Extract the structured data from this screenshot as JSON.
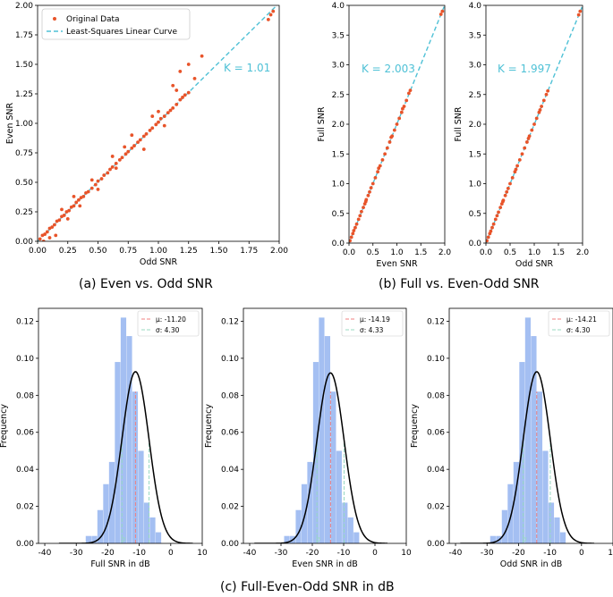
{
  "captions": {
    "a": "(a) Even vs. Odd SNR",
    "b": "(b) Full vs. Even-Odd SNR",
    "c": "(c) Full-Even-Odd SNR in dB"
  },
  "colors": {
    "points": "#e8542a",
    "fit": "#4fc1d6",
    "hist": "#a4bff2",
    "gauss": "#000000",
    "mu_line": "#f08080",
    "sigma_line": "#98d9c2"
  },
  "chart_data": [
    {
      "id": "a",
      "type": "scatter",
      "xlabel": "Odd SNR",
      "ylabel": "Even SNR",
      "xlim": [
        0,
        2.0
      ],
      "ylim": [
        0,
        2.0
      ],
      "xticks": [
        0.0,
        0.25,
        0.5,
        0.75,
        1.0,
        1.25,
        1.5,
        1.75,
        2.0
      ],
      "yticks": [
        0.0,
        0.25,
        0.5,
        0.75,
        1.0,
        1.25,
        1.5,
        1.75,
        2.0
      ],
      "tick_decimals": 2,
      "legend": {
        "position": "upper-left",
        "entries": [
          "Original Data",
          "Least-Squares Linear Curve"
        ]
      },
      "fit": {
        "slope": 1.01,
        "annotation": "K = 1.01"
      },
      "series": [
        {
          "name": "Original Data",
          "type": "scatter",
          "points": [
            [
              0.02,
              0.02
            ],
            [
              0.04,
              0.05
            ],
            [
              0.06,
              0.06
            ],
            [
              0.08,
              0.08
            ],
            [
              0.1,
              0.11
            ],
            [
              0.12,
              0.12
            ],
            [
              0.14,
              0.14
            ],
            [
              0.16,
              0.17
            ],
            [
              0.18,
              0.18
            ],
            [
              0.2,
              0.21
            ],
            [
              0.22,
              0.22
            ],
            [
              0.24,
              0.25
            ],
            [
              0.26,
              0.26
            ],
            [
              0.28,
              0.29
            ],
            [
              0.3,
              0.3
            ],
            [
              0.32,
              0.33
            ],
            [
              0.34,
              0.35
            ],
            [
              0.36,
              0.37
            ],
            [
              0.38,
              0.38
            ],
            [
              0.4,
              0.41
            ],
            [
              0.42,
              0.42
            ],
            [
              0.45,
              0.45
            ],
            [
              0.48,
              0.48
            ],
            [
              0.5,
              0.51
            ],
            [
              0.53,
              0.53
            ],
            [
              0.55,
              0.56
            ],
            [
              0.58,
              0.58
            ],
            [
              0.6,
              0.61
            ],
            [
              0.62,
              0.63
            ],
            [
              0.65,
              0.66
            ],
            [
              0.68,
              0.69
            ],
            [
              0.7,
              0.71
            ],
            [
              0.73,
              0.74
            ],
            [
              0.75,
              0.76
            ],
            [
              0.78,
              0.79
            ],
            [
              0.8,
              0.81
            ],
            [
              0.83,
              0.84
            ],
            [
              0.85,
              0.86
            ],
            [
              0.88,
              0.89
            ],
            [
              0.9,
              0.91
            ],
            [
              0.93,
              0.94
            ],
            [
              0.95,
              0.96
            ],
            [
              0.98,
              0.99
            ],
            [
              1.0,
              1.01
            ],
            [
              1.02,
              1.04
            ],
            [
              1.05,
              1.06
            ],
            [
              1.08,
              1.09
            ],
            [
              1.1,
              1.11
            ],
            [
              1.12,
              1.13
            ],
            [
              1.15,
              1.16
            ],
            [
              1.18,
              1.2
            ],
            [
              1.2,
              1.22
            ],
            [
              1.22,
              1.24
            ],
            [
              1.25,
              1.26
            ],
            [
              0.1,
              0.03
            ],
            [
              0.15,
              0.05
            ],
            [
              0.3,
              0.38
            ],
            [
              0.45,
              0.52
            ],
            [
              0.62,
              0.72
            ],
            [
              0.65,
              0.62
            ],
            [
              0.78,
              0.9
            ],
            [
              0.95,
              1.06
            ],
            [
              1.0,
              1.1
            ],
            [
              1.05,
              0.98
            ],
            [
              1.12,
              1.32
            ],
            [
              1.18,
              1.44
            ],
            [
              1.25,
              1.5
            ],
            [
              1.3,
              1.38
            ],
            [
              1.36,
              1.57
            ],
            [
              1.91,
              1.88
            ],
            [
              1.93,
              1.92
            ],
            [
              1.95,
              1.95
            ],
            [
              0.88,
              0.78
            ],
            [
              0.5,
              0.44
            ],
            [
              0.25,
              0.19
            ],
            [
              0.05,
              0.0
            ],
            [
              0.2,
              0.27
            ],
            [
              0.72,
              0.8
            ],
            [
              1.15,
              1.28
            ],
            [
              0.35,
              0.3
            ]
          ]
        }
      ]
    },
    {
      "id": "b1",
      "type": "scatter",
      "xlabel": "Even SNR",
      "ylabel": "Full SNR",
      "xlim": [
        0,
        2.0
      ],
      "ylim": [
        0,
        4.0
      ],
      "xticks": [
        0.0,
        0.5,
        1.0,
        1.5,
        2.0
      ],
      "yticks": [
        0.0,
        0.5,
        1.0,
        1.5,
        2.0,
        2.5,
        3.0,
        3.5,
        4.0
      ],
      "tick_decimals": 1,
      "fit": {
        "slope": 2.003,
        "annotation": "K = 2.003"
      },
      "series": [
        {
          "name": "Original Data",
          "type": "scatter",
          "points": [
            [
              0.02,
              0.04
            ],
            [
              0.05,
              0.1
            ],
            [
              0.08,
              0.16
            ],
            [
              0.1,
              0.21
            ],
            [
              0.13,
              0.26
            ],
            [
              0.16,
              0.32
            ],
            [
              0.2,
              0.4
            ],
            [
              0.23,
              0.46
            ],
            [
              0.26,
              0.53
            ],
            [
              0.3,
              0.6
            ],
            [
              0.33,
              0.66
            ],
            [
              0.36,
              0.73
            ],
            [
              0.4,
              0.8
            ],
            [
              0.43,
              0.86
            ],
            [
              0.46,
              0.93
            ],
            [
              0.5,
              1.0
            ],
            [
              0.55,
              1.1
            ],
            [
              0.6,
              1.2
            ],
            [
              0.65,
              1.3
            ],
            [
              0.7,
              1.4
            ],
            [
              0.75,
              1.5
            ],
            [
              0.8,
              1.6
            ],
            [
              0.85,
              1.7
            ],
            [
              0.9,
              1.8
            ],
            [
              0.95,
              1.9
            ],
            [
              1.0,
              2.0
            ],
            [
              1.05,
              2.1
            ],
            [
              1.1,
              2.2
            ],
            [
              1.15,
              2.3
            ],
            [
              1.2,
              2.4
            ],
            [
              1.25,
              2.52
            ],
            [
              1.28,
              2.57
            ],
            [
              1.92,
              3.85
            ],
            [
              1.95,
              3.9
            ],
            [
              0.35,
              0.7
            ],
            [
              0.62,
              1.26
            ],
            [
              0.88,
              1.78
            ],
            [
              1.12,
              2.26
            ]
          ]
        }
      ]
    },
    {
      "id": "b2",
      "type": "scatter",
      "xlabel": "Odd SNR",
      "ylabel": "Full SNR",
      "xlim": [
        0,
        2.0
      ],
      "ylim": [
        0,
        4.0
      ],
      "xticks": [
        0.0,
        0.5,
        1.0,
        1.5,
        2.0
      ],
      "yticks": [
        0.0,
        0.5,
        1.0,
        1.5,
        2.0,
        2.5,
        3.0,
        3.5,
        4.0
      ],
      "tick_decimals": 1,
      "fit": {
        "slope": 1.997,
        "annotation": "K = 1.997"
      },
      "series": [
        {
          "name": "Original Data",
          "type": "scatter",
          "points": [
            [
              0.02,
              0.04
            ],
            [
              0.05,
              0.1
            ],
            [
              0.08,
              0.16
            ],
            [
              0.1,
              0.2
            ],
            [
              0.13,
              0.26
            ],
            [
              0.16,
              0.32
            ],
            [
              0.2,
              0.4
            ],
            [
              0.23,
              0.46
            ],
            [
              0.26,
              0.52
            ],
            [
              0.3,
              0.6
            ],
            [
              0.33,
              0.66
            ],
            [
              0.36,
              0.72
            ],
            [
              0.4,
              0.8
            ],
            [
              0.43,
              0.86
            ],
            [
              0.46,
              0.92
            ],
            [
              0.5,
              1.0
            ],
            [
              0.55,
              1.1
            ],
            [
              0.6,
              1.2
            ],
            [
              0.65,
              1.3
            ],
            [
              0.7,
              1.4
            ],
            [
              0.75,
              1.5
            ],
            [
              0.8,
              1.6
            ],
            [
              0.85,
              1.7
            ],
            [
              0.9,
              1.8
            ],
            [
              0.95,
              1.9
            ],
            [
              1.0,
              2.0
            ],
            [
              1.05,
              2.1
            ],
            [
              1.1,
              2.2
            ],
            [
              1.15,
              2.3
            ],
            [
              1.2,
              2.4
            ],
            [
              1.25,
              2.5
            ],
            [
              1.28,
              2.56
            ],
            [
              1.92,
              3.84
            ],
            [
              1.95,
              3.9
            ],
            [
              0.35,
              0.7
            ],
            [
              0.62,
              1.24
            ],
            [
              0.88,
              1.76
            ],
            [
              1.12,
              2.24
            ]
          ]
        }
      ]
    },
    {
      "id": "c1",
      "type": "bar",
      "xlabel": "Full SNR in dB",
      "ylabel": "Frequency",
      "xlim": [
        -42,
        10
      ],
      "ylim": [
        0,
        0.127
      ],
      "xticks": [
        -40,
        -30,
        -20,
        -10,
        0,
        10
      ],
      "yticks": [
        0.0,
        0.02,
        0.04,
        0.06,
        0.08,
        0.1,
        0.12
      ],
      "tick_decimals": 2,
      "legend": {
        "position": "upper-right",
        "entries": [
          "μ: -11.20",
          "σ: 4.30"
        ]
      },
      "mu": -11.2,
      "sigma": 4.3,
      "sigma_marker": "σ",
      "bins": {
        "start": -27,
        "width": 1.85,
        "values": [
          0.004,
          0.004,
          0.018,
          0.032,
          0.044,
          0.098,
          0.122,
          0.112,
          0.082,
          0.05,
          0.022,
          0.014,
          0.006
        ]
      },
      "gaussian": {
        "mean": -11.2,
        "sd": 4.3,
        "x_range": [
          -35.5,
          7
        ]
      }
    },
    {
      "id": "c2",
      "type": "bar",
      "xlabel": "Even SNR in dB",
      "ylabel": "Frequency",
      "xlim": [
        -42,
        10
      ],
      "ylim": [
        0,
        0.127
      ],
      "xticks": [
        -40,
        -30,
        -20,
        -10,
        0,
        10
      ],
      "yticks": [
        0.0,
        0.02,
        0.04,
        0.06,
        0.08,
        0.1,
        0.12
      ],
      "tick_decimals": 2,
      "legend": {
        "position": "upper-right",
        "entries": [
          "μ: -14.19",
          "σ: 4.33"
        ]
      },
      "mu": -14.19,
      "sigma": 4.33,
      "sigma_marker": "σ",
      "bins": {
        "start": -29,
        "width": 1.85,
        "values": [
          0.004,
          0.004,
          0.018,
          0.032,
          0.044,
          0.098,
          0.122,
          0.112,
          0.082,
          0.05,
          0.022,
          0.014,
          0.006
        ]
      },
      "gaussian": {
        "mean": -14.19,
        "sd": 4.33,
        "x_range": [
          -38.5,
          4
        ]
      }
    },
    {
      "id": "c3",
      "type": "bar",
      "xlabel": "Odd SNR in dB",
      "ylabel": "Frequency",
      "xlim": [
        -42,
        10
      ],
      "ylim": [
        0,
        0.127
      ],
      "xticks": [
        -40,
        -30,
        -20,
        -10,
        0,
        10
      ],
      "yticks": [
        0.0,
        0.02,
        0.04,
        0.06,
        0.08,
        0.1,
        0.12
      ],
      "tick_decimals": 2,
      "legend": {
        "position": "upper-right",
        "entries": [
          "μ: -14.21",
          "σ: 4.30"
        ]
      },
      "mu": -14.21,
      "sigma": 4.3,
      "sigma_marker": "σ",
      "bins": {
        "start": -29,
        "width": 1.85,
        "values": [
          0.004,
          0.004,
          0.018,
          0.032,
          0.044,
          0.098,
          0.122,
          0.112,
          0.082,
          0.05,
          0.022,
          0.014,
          0.006
        ]
      },
      "gaussian": {
        "mean": -14.21,
        "sd": 4.3,
        "x_range": [
          -38.5,
          4
        ]
      }
    }
  ]
}
